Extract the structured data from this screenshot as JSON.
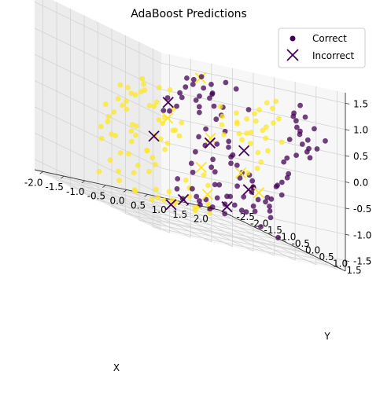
{
  "chart_data": {
    "type": "scatter",
    "projection": "3d",
    "title": "AdaBoost Predictions",
    "xlabel": "X",
    "ylabel": "Y",
    "zlabel": "",
    "xlim": [
      -2.2,
      2.2
    ],
    "ylim": [
      -2.8,
      1.8
    ],
    "zlim": [
      -1.7,
      1.7
    ],
    "x_ticks": [
      "-2.0",
      "-1.5",
      "-1.0",
      "-0.5",
      "0.0",
      "0.5",
      "1.0",
      "1.5",
      "2.0"
    ],
    "y_ticks": [
      "-2.5",
      "-2.0",
      "-1.5",
      "-1.0",
      "-0.5",
      "0.0",
      "0.5",
      "1.0",
      "1.5"
    ],
    "z_ticks": [
      "-1.5",
      "-1.0",
      "-0.5",
      "0.0",
      "0.5",
      "1.0",
      "1.5"
    ],
    "grid": true,
    "legend_position": "top-right",
    "legend": [
      {
        "label": "Correct",
        "marker": "circle"
      },
      {
        "label": "Incorrect",
        "marker": "x"
      }
    ],
    "colors": {
      "class_0": "#440154",
      "class_1": "#fde725"
    },
    "description_note": "",
    "series": [
      {
        "name": "Correct",
        "marker": "circle",
        "class": 0,
        "points": [
          [
            -0.62,
            0.58,
            1.15
          ],
          [
            -0.48,
            0.72,
            1.05
          ],
          [
            -0.35,
            0.45,
            1.22
          ],
          [
            -0.22,
            0.65,
            0.98
          ],
          [
            -0.55,
            0.22,
            1.1
          ],
          [
            -0.3,
            0.3,
            0.82
          ],
          [
            -0.15,
            0.5,
            1.12
          ],
          [
            -0.7,
            0.4,
            0.95
          ],
          [
            -0.42,
            0.85,
            0.9
          ],
          [
            -0.05,
            0.38,
            0.92
          ],
          [
            -0.25,
            0.1,
            0.7
          ],
          [
            -0.5,
            0.6,
            0.55
          ],
          [
            0.05,
            0.62,
            0.75
          ],
          [
            -0.38,
            0.95,
            0.78
          ],
          [
            -0.12,
            0.82,
            0.62
          ],
          [
            0.1,
            0.3,
            0.45
          ],
          [
            -0.6,
            0.75,
            0.68
          ],
          [
            0.18,
            0.5,
            0.28
          ],
          [
            -0.05,
            0.15,
            0.2
          ],
          [
            0.3,
            0.45,
            0.1
          ],
          [
            0.25,
            0.1,
            -0.05
          ],
          [
            0.42,
            0.35,
            -0.2
          ],
          [
            0.1,
            -0.1,
            -0.15
          ],
          [
            0.55,
            0.15,
            -0.35
          ],
          [
            0.35,
            -0.2,
            -0.4
          ],
          [
            0.65,
            0.4,
            -0.45
          ],
          [
            0.8,
            0.1,
            -0.6
          ],
          [
            0.5,
            -0.35,
            -0.65
          ],
          [
            0.9,
            -0.15,
            -0.8
          ],
          [
            1.05,
            0.2,
            -0.7
          ],
          [
            0.7,
            -0.5,
            -0.9
          ],
          [
            1.15,
            -0.3,
            -1.0
          ],
          [
            0.95,
            -0.6,
            -1.1
          ],
          [
            1.3,
            0.0,
            -0.95
          ],
          [
            1.2,
            -0.7,
            -1.25
          ],
          [
            1.45,
            -0.4,
            -1.15
          ],
          [
            1.1,
            -0.9,
            -1.3
          ],
          [
            0.85,
            -0.8,
            -1.2
          ],
          [
            1.5,
            -0.9,
            -1.35
          ],
          [
            1.0,
            -1.2,
            -1.45
          ],
          [
            0.4,
            0.6,
            -0.3
          ],
          [
            0.2,
            0.75,
            -0.1
          ],
          [
            0.6,
            0.85,
            -0.5
          ],
          [
            0.75,
            0.6,
            -0.75
          ],
          [
            0.0,
            0.9,
            0.05
          ],
          [
            0.95,
            0.8,
            -0.85
          ],
          [
            0.5,
            1.05,
            -0.6
          ],
          [
            1.25,
            0.5,
            -1.05
          ],
          [
            0.3,
            1.2,
            -0.35
          ],
          [
            1.4,
            0.3,
            -1.2
          ],
          [
            1.35,
            1.2,
            0.95
          ],
          [
            1.55,
            1.0,
            0.85
          ],
          [
            1.2,
            1.45,
            1.05
          ],
          [
            1.7,
            0.8,
            0.7
          ],
          [
            1.45,
            1.3,
            1.2
          ],
          [
            1.6,
            1.15,
            0.45
          ],
          [
            1.8,
            0.95,
            0.95
          ],
          [
            1.25,
            1.6,
            0.75
          ],
          [
            1.9,
            0.6,
            0.55
          ],
          [
            1.5,
            1.5,
            0.6
          ],
          [
            1.65,
            1.35,
            0.25
          ],
          [
            1.75,
            0.7,
            0.15
          ],
          [
            1.95,
            0.85,
            0.35
          ],
          [
            1.35,
            1.7,
            0.4
          ],
          [
            1.85,
            1.2,
            0.8
          ],
          [
            1.55,
            0.55,
            -0.05
          ],
          [
            1.4,
            0.95,
            -0.2
          ],
          [
            1.7,
            0.45,
            -0.35
          ],
          [
            1.3,
            0.7,
            -0.5
          ],
          [
            1.6,
            0.2,
            -0.6
          ],
          [
            1.1,
            1.35,
            0.15
          ],
          [
            1.0,
            1.6,
            0.55
          ],
          [
            1.95,
            1.45,
            0.65
          ],
          [
            2.05,
            1.0,
            0.4
          ],
          [
            1.45,
            0.25,
            -0.85
          ],
          [
            -0.8,
            -0.1,
            0.6
          ],
          [
            -0.95,
            0.2,
            0.4
          ],
          [
            -0.7,
            -0.4,
            0.3
          ],
          [
            -0.45,
            -0.3,
            0.45
          ],
          [
            -0.85,
            0.5,
            0.75
          ],
          [
            0.0,
            -0.45,
            -0.6
          ],
          [
            0.2,
            -0.7,
            -0.8
          ],
          [
            -0.1,
            -0.8,
            -1.0
          ],
          [
            0.35,
            -0.95,
            -1.15
          ],
          [
            0.55,
            -1.1,
            -1.3
          ],
          [
            0.75,
            -1.3,
            -1.4
          ],
          [
            0.15,
            -1.2,
            -1.25
          ],
          [
            0.9,
            -1.5,
            -1.5
          ],
          [
            0.45,
            -1.45,
            -1.45
          ],
          [
            1.2,
            -1.6,
            -1.55
          ],
          [
            0.6,
            0.05,
            -1.0
          ],
          [
            0.85,
            0.25,
            -1.2
          ],
          [
            1.1,
            0.4,
            -1.4
          ],
          [
            0.3,
            -0.05,
            -0.85
          ],
          [
            1.35,
            0.65,
            -1.5
          ],
          [
            0.05,
            0.2,
            -0.5
          ],
          [
            -0.2,
            0.0,
            -0.3
          ],
          [
            0.45,
            -0.6,
            -1.25
          ],
          [
            0.7,
            -0.3,
            -1.4
          ],
          [
            -0.35,
            0.35,
            0.05
          ],
          [
            1.65,
            -0.2,
            -0.9
          ],
          [
            1.8,
            0.1,
            -0.75
          ],
          [
            1.9,
            -0.5,
            -1.1
          ],
          [
            1.75,
            -0.8,
            -1.3
          ],
          [
            2.0,
            -0.2,
            -0.55
          ],
          [
            -0.2,
            1.1,
            1.3
          ],
          [
            0.15,
            0.95,
            1.2
          ],
          [
            -0.85,
            0.9,
            1.1
          ],
          [
            -1.0,
            0.65,
            0.85
          ],
          [
            0.25,
            1.25,
            0.9
          ]
        ]
      },
      {
        "name": "Correct",
        "marker": "circle",
        "class": 1,
        "points": [
          [
            -1.85,
            -0.3,
            0.35
          ],
          [
            -1.7,
            0.1,
            0.55
          ],
          [
            -1.55,
            -0.6,
            0.2
          ],
          [
            -1.9,
            0.3,
            0.0
          ],
          [
            -1.6,
            -0.2,
            -0.2
          ],
          [
            -1.45,
            0.4,
            0.45
          ],
          [
            -1.75,
            -0.8,
            -0.1
          ],
          [
            -1.35,
            -0.1,
            0.65
          ],
          [
            -1.5,
            0.65,
            0.25
          ],
          [
            -1.3,
            -0.5,
            -0.3
          ],
          [
            -1.95,
            -0.6,
            0.15
          ],
          [
            -1.2,
            0.2,
            0.8
          ],
          [
            -1.65,
            0.8,
            0.6
          ],
          [
            -1.25,
            -0.9,
            0.1
          ],
          [
            -1.4,
            0.9,
            0.9
          ],
          [
            -1.1,
            -0.3,
            0.35
          ],
          [
            -1.8,
            0.55,
            0.85
          ],
          [
            -1.05,
            0.5,
            0.5
          ],
          [
            -1.55,
            -1.0,
            -0.45
          ],
          [
            -1.15,
            -0.7,
            -0.15
          ],
          [
            -0.95,
            -0.05,
            0.1
          ],
          [
            -1.0,
            -0.55,
            -0.55
          ],
          [
            -0.8,
            -0.35,
            -0.25
          ],
          [
            -0.9,
            0.25,
            0.05
          ],
          [
            -0.7,
            -0.8,
            -0.7
          ],
          [
            -1.2,
            -1.2,
            -0.8
          ],
          [
            -0.85,
            -1.1,
            -0.95
          ],
          [
            -0.6,
            -0.5,
            -0.45
          ],
          [
            -1.35,
            -1.35,
            -1.0
          ],
          [
            -0.55,
            -0.2,
            0.0
          ],
          [
            -1.65,
            -1.2,
            -0.6
          ],
          [
            -0.75,
            -1.4,
            -1.15
          ],
          [
            -1.05,
            -1.5,
            -1.2
          ],
          [
            -0.5,
            -1.0,
            -0.85
          ],
          [
            -1.45,
            -1.6,
            -1.3
          ],
          [
            -0.4,
            -0.7,
            -0.35
          ],
          [
            -0.65,
            0.1,
            -0.05
          ],
          [
            -0.3,
            -0.35,
            0.15
          ],
          [
            -0.45,
            -1.3,
            -1.05
          ],
          [
            -0.9,
            -1.7,
            -1.4
          ],
          [
            0.5,
            0.8,
            0.65
          ],
          [
            0.7,
            0.95,
            0.9
          ],
          [
            0.85,
            0.55,
            0.75
          ],
          [
            0.6,
            0.3,
            0.45
          ],
          [
            0.95,
            0.85,
            1.05
          ],
          [
            1.1,
            0.6,
            0.55
          ],
          [
            0.75,
            0.15,
            0.25
          ],
          [
            1.2,
            0.9,
            0.8
          ],
          [
            0.9,
            0.35,
            0.35
          ],
          [
            1.0,
            1.1,
            1.15
          ],
          [
            0.55,
            0.55,
            0.2
          ],
          [
            1.25,
            0.35,
            0.3
          ],
          [
            0.8,
            0.75,
            0.05
          ],
          [
            1.05,
            0.1,
            0.1
          ],
          [
            0.65,
            1.15,
            0.55
          ],
          [
            0.4,
            0.95,
            0.4
          ],
          [
            1.15,
            0.75,
            0.95
          ],
          [
            0.95,
            0.45,
            0.6
          ],
          [
            0.35,
            0.65,
            0.7
          ],
          [
            1.3,
            0.55,
            0.65
          ],
          [
            0.2,
            -0.3,
            -0.75
          ],
          [
            0.4,
            -0.45,
            -0.95
          ],
          [
            0.05,
            -0.6,
            -1.1
          ],
          [
            0.6,
            -0.75,
            -1.35
          ],
          [
            0.25,
            -0.9,
            -1.3
          ],
          [
            -0.1,
            -0.5,
            -0.95
          ],
          [
            0.45,
            -1.0,
            -1.5
          ],
          [
            -0.2,
            -0.95,
            -1.3
          ],
          [
            0.8,
            -1.0,
            -1.55
          ],
          [
            0.1,
            -1.3,
            -1.5
          ],
          [
            -0.35,
            -1.2,
            -1.35
          ],
          [
            0.65,
            -1.3,
            -1.6
          ],
          [
            0.3,
            -1.55,
            -1.6
          ],
          [
            -0.05,
            -1.6,
            -1.55
          ],
          [
            0.95,
            -1.7,
            -1.6
          ],
          [
            -1.7,
            -0.45,
            0.6
          ],
          [
            -1.6,
            0.2,
            0.9
          ],
          [
            -1.3,
            0.55,
            0.3
          ],
          [
            -1.85,
            0.05,
            0.65
          ],
          [
            -1.5,
            -0.35,
            0.5
          ],
          [
            0.3,
            0.2,
            0.35
          ],
          [
            0.15,
            0.45,
            0.55
          ],
          [
            0.45,
            0.05,
            0.15
          ],
          [
            0.0,
            0.6,
            0.75
          ],
          [
            0.5,
            0.45,
            0.5
          ],
          [
            -1.25,
            -0.15,
            -0.5
          ],
          [
            -1.4,
            -0.6,
            -0.7
          ],
          [
            -1.1,
            -0.95,
            -0.5
          ],
          [
            -1.75,
            -0.55,
            -0.4
          ],
          [
            -1.2,
            0.05,
            -0.15
          ],
          [
            1.4,
            0.2,
            0.05
          ],
          [
            1.5,
            -0.2,
            -0.25
          ],
          [
            1.25,
            0.05,
            -0.35
          ],
          [
            1.6,
            0.4,
            0.3
          ],
          [
            1.35,
            -0.45,
            -0.55
          ],
          [
            -0.25,
            -1.5,
            -1.6
          ],
          [
            0.2,
            -1.75,
            -1.6
          ],
          [
            -0.6,
            -1.6,
            -1.5
          ],
          [
            0.55,
            -1.85,
            -1.6
          ],
          [
            -0.45,
            -1.8,
            -1.55
          ],
          [
            -1.95,
            0.15,
            0.4
          ],
          [
            -2.05,
            -0.15,
            0.1
          ],
          [
            -1.9,
            0.6,
            0.7
          ],
          [
            -2.0,
            -0.45,
            -0.15
          ],
          [
            -1.8,
            -1.0,
            -0.35
          ]
        ]
      },
      {
        "name": "Incorrect",
        "marker": "x",
        "class": 0,
        "points": [
          [
            -0.95,
            0.15,
            0.55
          ],
          [
            0.05,
            0.15,
            -0.05
          ],
          [
            0.6,
            0.55,
            0.0
          ],
          [
            0.95,
            -0.6,
            -1.3
          ],
          [
            1.3,
            -0.35,
            -0.85
          ],
          [
            -0.6,
            -0.9,
            -0.3
          ],
          [
            0.4,
            -1.35,
            -1.45
          ],
          [
            0.6,
            -2.1,
            -1.7
          ]
        ]
      },
      {
        "name": "Incorrect",
        "marker": "x",
        "class": 1,
        "points": [
          [
            -0.9,
            1.25,
            1.3
          ],
          [
            -0.2,
            0.55,
            0.1
          ],
          [
            1.05,
            -0.25,
            -0.55
          ],
          [
            -0.5,
            -0.55,
            0.15
          ],
          [
            1.25,
            0.1,
            -0.8
          ],
          [
            0.75,
            -1.0,
            -1.2
          ],
          [
            0.3,
            -0.55,
            -0.65
          ]
        ]
      }
    ]
  }
}
